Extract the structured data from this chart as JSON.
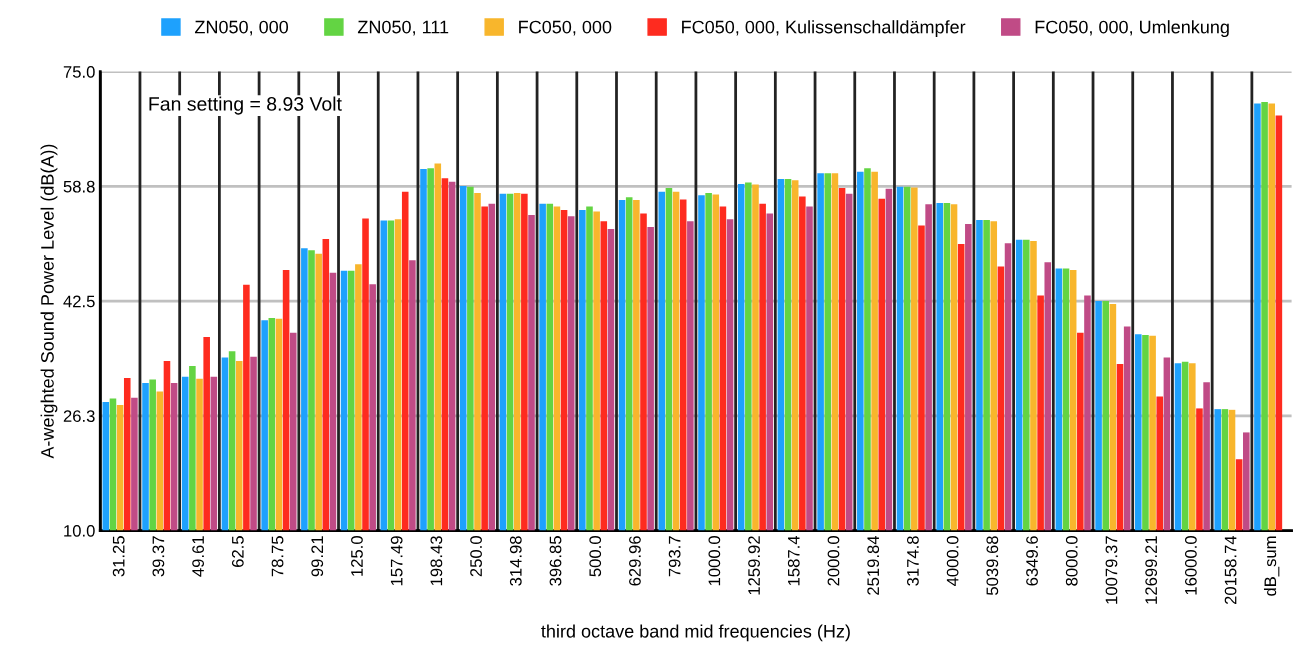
{
  "chart_data": {
    "type": "bar",
    "xlabel": "third octave band mid frequencies (Hz)",
    "ylabel": "A-weighted Sound Power Level (dB(A))",
    "annotations": [
      "Fan setting = 8.93 Volt"
    ],
    "categories": [
      "31.25",
      "39.37",
      "49.61",
      "62.5",
      "78.75",
      "99.21",
      "125.0",
      "157.49",
      "198.43",
      "250.0",
      "314.98",
      "396.85",
      "500.0",
      "629.96",
      "793.7",
      "1000.0",
      "1259.92",
      "1587.4",
      "2000.0",
      "2519.84",
      "3174.8",
      "4000.0",
      "5039.68",
      "6349.6",
      "8000.0",
      "10079.37",
      "12699.21",
      "16000.0",
      "20158.74",
      "dB_sum"
    ],
    "series": [
      {
        "name": "ZN050, 000",
        "color": "#1ea1fd",
        "values": [
          28.2,
          30.9,
          31.8,
          34.5,
          39.8,
          50.0,
          46.8,
          53.9,
          61.2,
          58.8,
          57.7,
          56.3,
          55.4,
          56.8,
          58.0,
          57.5,
          59.1,
          59.8,
          60.6,
          60.8,
          58.7,
          56.4,
          54.0,
          51.2,
          47.1,
          42.5,
          37.8,
          33.7,
          27.2,
          70.5
        ]
      },
      {
        "name": "ZN050, 111",
        "color": "#63d443",
        "values": [
          28.7,
          31.4,
          33.3,
          35.4,
          40.1,
          49.7,
          46.8,
          53.9,
          61.3,
          58.7,
          57.7,
          56.3,
          55.9,
          57.2,
          58.5,
          57.8,
          59.3,
          59.8,
          60.6,
          61.3,
          58.7,
          56.4,
          54.0,
          51.2,
          47.1,
          42.5,
          37.7,
          33.9,
          27.2,
          70.7
        ]
      },
      {
        "name": "FC050, 000",
        "color": "#f8b62c",
        "values": [
          27.8,
          29.7,
          31.5,
          34.0,
          40.0,
          49.2,
          47.7,
          54.1,
          62.0,
          57.8,
          57.8,
          55.9,
          55.2,
          56.8,
          58.0,
          57.6,
          59.0,
          59.6,
          60.6,
          60.8,
          58.6,
          56.2,
          53.8,
          51.0,
          46.9,
          42.1,
          37.6,
          33.7,
          27.1,
          70.5
        ]
      },
      {
        "name": "FC050, 000, Kulissenschalldämpfer",
        "color": "#fe2b1f",
        "values": [
          31.6,
          34.0,
          37.4,
          44.8,
          46.9,
          51.3,
          54.2,
          58.0,
          59.9,
          55.9,
          57.7,
          55.4,
          53.8,
          54.9,
          56.9,
          55.9,
          56.3,
          57.3,
          58.5,
          57.0,
          53.2,
          50.6,
          47.4,
          43.3,
          38.0,
          33.6,
          29.0,
          27.3,
          20.1,
          68.8
        ]
      },
      {
        "name": "FC050, 000, Umlenkung",
        "color": "#c04b86",
        "values": [
          28.8,
          30.9,
          31.8,
          34.6,
          38.0,
          46.5,
          44.9,
          48.3,
          59.4,
          56.3,
          54.7,
          54.5,
          52.7,
          53.0,
          53.8,
          54.1,
          54.9,
          55.9,
          57.7,
          58.4,
          56.2,
          53.4,
          50.7,
          48.0,
          43.3,
          38.9,
          34.5,
          31.0,
          23.9,
          null
        ]
      }
    ],
    "ylim": [
      10,
      75
    ],
    "yticks": [
      {
        "value": 10,
        "label": "10.0"
      },
      {
        "value": 26.25,
        "label": "26.3"
      },
      {
        "value": 42.5,
        "label": "42.5"
      },
      {
        "value": 58.75,
        "label": "58.8"
      },
      {
        "value": 75,
        "label": "75.0"
      }
    ],
    "grid": true,
    "legend": "top"
  }
}
